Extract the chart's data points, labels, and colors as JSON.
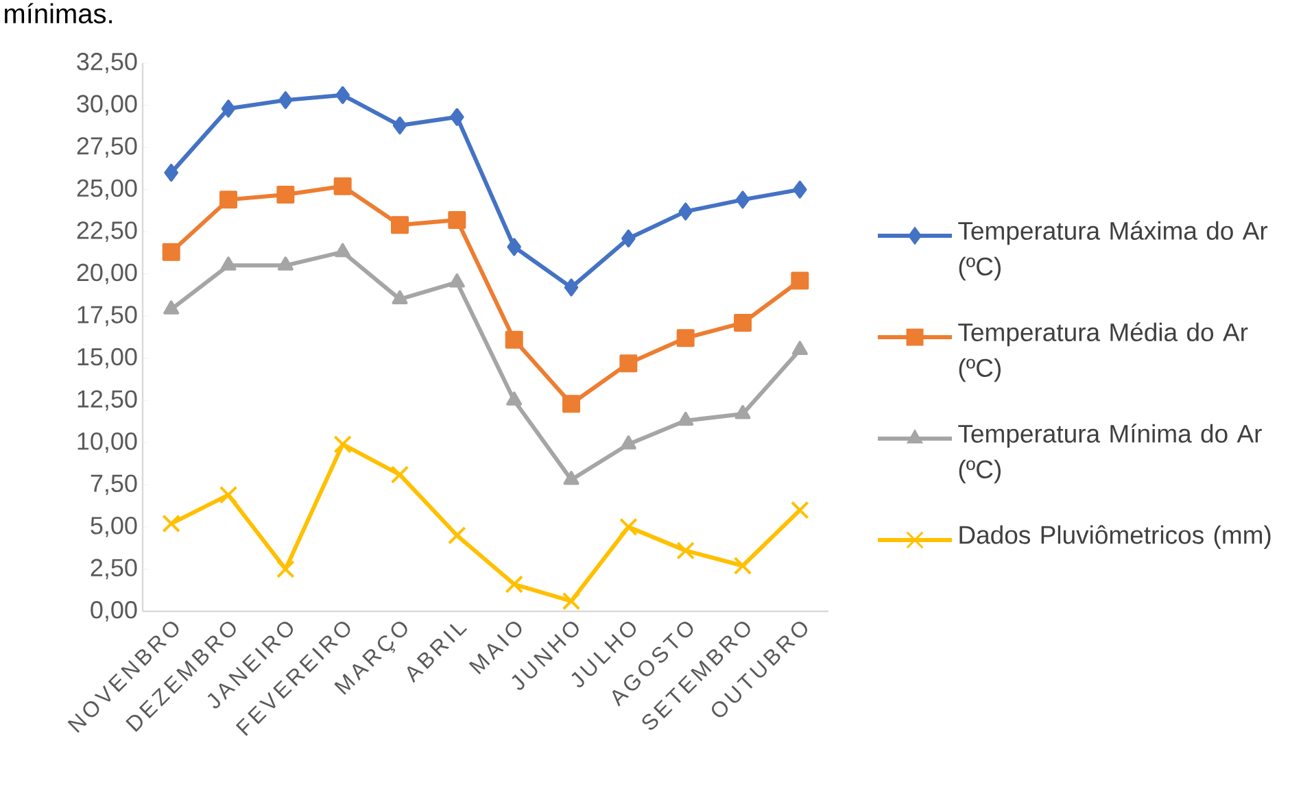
{
  "chart_data": {
    "type": "line",
    "categories": [
      "NOVENBRO",
      "DEZEMBRO",
      "JANEIRO",
      "FEVEREIRO",
      "MARÇO",
      "ABRIL",
      "MAIO",
      "JUNHO",
      "JULHO",
      "AGOSTO",
      "SETEMBRO",
      "OUTUBRO"
    ],
    "series": [
      {
        "name": "Temperatura Máxima do Ar (ºC)",
        "color": "#4472c4",
        "marker": "diamond",
        "values": [
          26.0,
          29.8,
          30.3,
          30.6,
          28.8,
          29.3,
          21.6,
          19.2,
          22.1,
          23.7,
          24.4,
          25.0
        ]
      },
      {
        "name": "Temperatura Média do Ar (ºC)",
        "color": "#ed7d31",
        "marker": "square",
        "values": [
          21.3,
          24.4,
          24.7,
          25.2,
          22.9,
          23.2,
          16.1,
          12.3,
          14.7,
          16.2,
          17.1,
          19.6
        ]
      },
      {
        "name": "Temperatura Mínima do Ar (ºC)",
        "color": "#a5a5a5",
        "marker": "triangle",
        "values": [
          17.9,
          20.5,
          20.5,
          21.3,
          18.5,
          19.5,
          12.5,
          7.8,
          9.9,
          11.3,
          11.7,
          15.5
        ]
      },
      {
        "name": "Dados Pluviômetricos (mm)",
        "color": "#ffc000",
        "marker": "cross",
        "values": [
          5.2,
          6.9,
          2.5,
          9.9,
          8.1,
          4.5,
          1.6,
          0.6,
          5.0,
          3.6,
          2.7,
          6.0
        ]
      }
    ],
    "ylim": [
      0,
      32.5
    ],
    "yticks": [
      {
        "value": 0,
        "label": "0,00"
      },
      {
        "value": 2.5,
        "label": "2,50"
      },
      {
        "value": 5,
        "label": "5,00"
      },
      {
        "value": 7.5,
        "label": "7,50"
      },
      {
        "value": 10,
        "label": "10,00"
      },
      {
        "value": 12.5,
        "label": "12,50"
      },
      {
        "value": 15,
        "label": "15,00"
      },
      {
        "value": 17.5,
        "label": "17,50"
      },
      {
        "value": 20,
        "label": "20,00"
      },
      {
        "value": 22.5,
        "label": "22,50"
      },
      {
        "value": 25,
        "label": "25,00"
      },
      {
        "value": 27.5,
        "label": "27,50"
      },
      {
        "value": 30,
        "label": "30,00"
      },
      {
        "value": 32.5,
        "label": "32,50"
      }
    ],
    "grid": false,
    "legend": "right",
    "line_style": "solid",
    "annotations": [
      "mínimas."
    ]
  }
}
